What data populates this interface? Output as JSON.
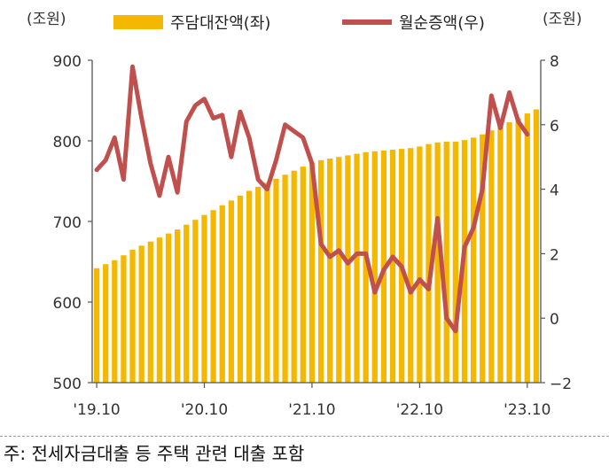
{
  "chart_data": {
    "type": "bar+line",
    "left_unit": "(조원)",
    "right_unit": "(조원)",
    "left_axis": {
      "ylim": [
        500,
        900
      ],
      "ticks": [
        500,
        600,
        700,
        800,
        900
      ]
    },
    "right_axis": {
      "ylim": [
        -2,
        8
      ],
      "ticks": [
        -2,
        0,
        2,
        4,
        6,
        8
      ]
    },
    "x_ticks": [
      {
        "label": "'19.10",
        "index": 0
      },
      {
        "label": "'20.10",
        "index": 12
      },
      {
        "label": "'21.10",
        "index": 24
      },
      {
        "label": "'22.10",
        "index": 36
      },
      {
        "label": "'23.10",
        "index": 48
      }
    ],
    "series": [
      {
        "name": "주담대잔액(좌)",
        "type": "bar",
        "axis": "left",
        "color": "#f5b800",
        "values": [
          642,
          647,
          652,
          658,
          665,
          670,
          675,
          680,
          685,
          690,
          696,
          702,
          708,
          714,
          720,
          726,
          732,
          738,
          743,
          748,
          753,
          758,
          763,
          768,
          773,
          776,
          778,
          780,
          782,
          784,
          786,
          787,
          788,
          789,
          790,
          791,
          793,
          796,
          798,
          799,
          799,
          801,
          804,
          808,
          813,
          818,
          823,
          828,
          834,
          839
        ]
      },
      {
        "name": "월순증액(우)",
        "type": "line",
        "axis": "right",
        "color": "#c0504d",
        "values": [
          4.6,
          4.9,
          5.6,
          4.3,
          7.8,
          6.2,
          4.8,
          3.8,
          5.0,
          3.9,
          6.1,
          6.6,
          6.8,
          6.2,
          6.3,
          5.0,
          6.4,
          5.6,
          4.3,
          4.0,
          4.9,
          6.0,
          5.8,
          5.6,
          4.8,
          2.3,
          1.9,
          2.1,
          1.7,
          2.0,
          2.0,
          0.8,
          1.5,
          1.9,
          1.6,
          0.8,
          1.2,
          0.9,
          3.1,
          0.0,
          -0.4,
          2.2,
          2.8,
          4.0,
          6.9,
          5.9,
          7.0,
          6.1,
          5.7
        ]
      }
    ]
  },
  "footnote": "주: 전세자금대출 등 주택 관련 대출 포함"
}
